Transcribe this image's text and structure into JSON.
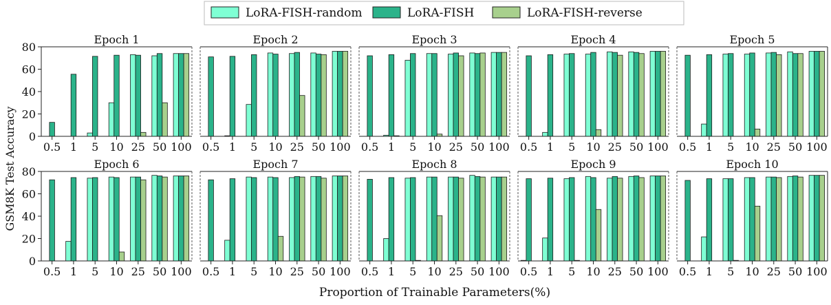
{
  "figure": {
    "ylabel": "GSM8K Test Accuracy",
    "xlabel": "Proportion of Trainable Parameters(%)"
  },
  "legend": {
    "placement": "top-center",
    "items": [
      {
        "label": "LoRA-FISH-random",
        "color": "#7FFFD4"
      },
      {
        "label": "LoRA-FISH",
        "color": "#2BB38A"
      },
      {
        "label": "LoRA-FISH-reverse",
        "color": "#A8D08D"
      }
    ]
  },
  "chart_data": [
    {
      "type": "bar",
      "title": "Epoch 1",
      "categories": [
        "0.5",
        "1",
        "5",
        "10",
        "25",
        "50",
        "100"
      ],
      "ylim": [
        0,
        80
      ],
      "yticks": [
        0,
        20,
        40,
        60,
        80
      ],
      "series": [
        {
          "name": "LoRA-FISH-random",
          "values": [
            0,
            0,
            3,
            30,
            73,
            72,
            74
          ]
        },
        {
          "name": "LoRA-FISH",
          "values": [
            12.5,
            55.5,
            71.5,
            72.5,
            72.5,
            74,
            74
          ]
        },
        {
          "name": "LoRA-FISH-reverse",
          "values": [
            0,
            0,
            0,
            0,
            3.5,
            30,
            74
          ]
        }
      ]
    },
    {
      "type": "bar",
      "title": "Epoch 2",
      "categories": [
        "0.5",
        "1",
        "5",
        "10",
        "25",
        "50",
        "100"
      ],
      "ylim": [
        0,
        80
      ],
      "yticks": [
        0,
        20,
        40,
        60,
        80
      ],
      "series": [
        {
          "name": "LoRA-FISH-random",
          "values": [
            0,
            0.5,
            28.5,
            74.5,
            74,
            74.5,
            76
          ]
        },
        {
          "name": "LoRA-FISH",
          "values": [
            71,
            71.5,
            73,
            73.5,
            75,
            73.5,
            76
          ]
        },
        {
          "name": "LoRA-FISH-reverse",
          "values": [
            0,
            0,
            0,
            0,
            36.5,
            73,
            76
          ]
        }
      ]
    },
    {
      "type": "bar",
      "title": "Epoch 3",
      "categories": [
        "0.5",
        "1",
        "5",
        "10",
        "25",
        "50",
        "100"
      ],
      "ylim": [
        0,
        80
      ],
      "yticks": [
        0,
        20,
        40,
        60,
        80
      ],
      "series": [
        {
          "name": "LoRA-FISH-random",
          "values": [
            0,
            1,
            68,
            74,
            73.5,
            74.5,
            75
          ]
        },
        {
          "name": "LoRA-FISH",
          "values": [
            72,
            73,
            74,
            74,
            74.5,
            74,
            75
          ]
        },
        {
          "name": "LoRA-FISH-reverse",
          "values": [
            0,
            0.5,
            0,
            2,
            72,
            74.5,
            75
          ]
        }
      ]
    },
    {
      "type": "bar",
      "title": "Epoch 4",
      "categories": [
        "0.5",
        "1",
        "5",
        "10",
        "25",
        "50",
        "100"
      ],
      "ylim": [
        0,
        80
      ],
      "yticks": [
        0,
        20,
        40,
        60,
        80
      ],
      "series": [
        {
          "name": "LoRA-FISH-random",
          "values": [
            0,
            3.5,
            73.5,
            73.5,
            75.5,
            75.5,
            76
          ]
        },
        {
          "name": "LoRA-FISH",
          "values": [
            72,
            73,
            74,
            75,
            75,
            75,
            76
          ]
        },
        {
          "name": "LoRA-FISH-reverse",
          "values": [
            0,
            0,
            0,
            6,
            72.5,
            74,
            76
          ]
        }
      ]
    },
    {
      "type": "bar",
      "title": "Epoch 5",
      "categories": [
        "0.5",
        "1",
        "5",
        "10",
        "25",
        "50",
        "100"
      ],
      "ylim": [
        0,
        80
      ],
      "yticks": [
        0,
        20,
        40,
        60,
        80
      ],
      "series": [
        {
          "name": "LoRA-FISH-random",
          "values": [
            0,
            11,
            73.5,
            73.5,
            74.5,
            75.5,
            76
          ]
        },
        {
          "name": "LoRA-FISH",
          "values": [
            72.5,
            73,
            74,
            74.5,
            75,
            74,
            76
          ]
        },
        {
          "name": "LoRA-FISH-reverse",
          "values": [
            0,
            0,
            0,
            6.5,
            73,
            74,
            76
          ]
        }
      ]
    },
    {
      "type": "bar",
      "title": "Epoch 6",
      "categories": [
        "0.5",
        "1",
        "5",
        "10",
        "25",
        "50",
        "100"
      ],
      "ylim": [
        0,
        80
      ],
      "yticks": [
        0,
        20,
        40,
        60,
        80
      ],
      "series": [
        {
          "name": "LoRA-FISH-random",
          "values": [
            0,
            17.5,
            74,
            75,
            75,
            76.5,
            76
          ]
        },
        {
          "name": "LoRA-FISH",
          "values": [
            72.5,
            74.5,
            74.5,
            74.5,
            75,
            76,
            76
          ]
        },
        {
          "name": "LoRA-FISH-reverse",
          "values": [
            0,
            0,
            0,
            8,
            72.5,
            75,
            76
          ]
        }
      ]
    },
    {
      "type": "bar",
      "title": "Epoch 7",
      "categories": [
        "0.5",
        "1",
        "5",
        "10",
        "25",
        "50",
        "100"
      ],
      "ylim": [
        0,
        80
      ],
      "yticks": [
        0,
        20,
        40,
        60,
        80
      ],
      "series": [
        {
          "name": "LoRA-FISH-random",
          "values": [
            0,
            18.5,
            75,
            75,
            74.5,
            75.5,
            76
          ]
        },
        {
          "name": "LoRA-FISH",
          "values": [
            72.5,
            73.5,
            74.5,
            74.5,
            75.5,
            75.5,
            76
          ]
        },
        {
          "name": "LoRA-FISH-reverse",
          "values": [
            0,
            0,
            0,
            22,
            75,
            74,
            76
          ]
        }
      ]
    },
    {
      "type": "bar",
      "title": "Epoch 8",
      "categories": [
        "0.5",
        "1",
        "5",
        "10",
        "25",
        "50",
        "100"
      ],
      "ylim": [
        0,
        80
      ],
      "yticks": [
        0,
        20,
        40,
        60,
        80
      ],
      "series": [
        {
          "name": "LoRA-FISH-random",
          "values": [
            0,
            20,
            74,
            75,
            75,
            76.5,
            75
          ]
        },
        {
          "name": "LoRA-FISH",
          "values": [
            73,
            74.5,
            74.5,
            75,
            75,
            75.5,
            75
          ]
        },
        {
          "name": "LoRA-FISH-reverse",
          "values": [
            0,
            0,
            0.5,
            40.5,
            74,
            75,
            75
          ]
        }
      ]
    },
    {
      "type": "bar",
      "title": "Epoch 9",
      "categories": [
        "0.5",
        "1",
        "5",
        "10",
        "25",
        "50",
        "100"
      ],
      "ylim": [
        0,
        80
      ],
      "yticks": [
        0,
        20,
        40,
        60,
        80
      ],
      "series": [
        {
          "name": "LoRA-FISH-random",
          "values": [
            0.5,
            20.5,
            73.5,
            75.5,
            74,
            75.5,
            76
          ]
        },
        {
          "name": "LoRA-FISH",
          "values": [
            73.5,
            74,
            74.5,
            74.5,
            75.5,
            76,
            76
          ]
        },
        {
          "name": "LoRA-FISH-reverse",
          "values": [
            0,
            0,
            0.5,
            46,
            74,
            74.5,
            76
          ]
        }
      ]
    },
    {
      "type": "bar",
      "title": "Epoch 10",
      "categories": [
        "0.5",
        "1",
        "5",
        "10",
        "25",
        "50",
        "100"
      ],
      "ylim": [
        0,
        80
      ],
      "yticks": [
        0,
        20,
        40,
        60,
        80
      ],
      "series": [
        {
          "name": "LoRA-FISH-random",
          "values": [
            0,
            21.5,
            73.5,
            74.5,
            75,
            75.5,
            76.5
          ]
        },
        {
          "name": "LoRA-FISH",
          "values": [
            72,
            73.5,
            73.5,
            74.5,
            75,
            76,
            76.5
          ]
        },
        {
          "name": "LoRA-FISH-reverse",
          "values": [
            0,
            0,
            0.5,
            49,
            74.5,
            75,
            76.5
          ]
        }
      ]
    }
  ]
}
